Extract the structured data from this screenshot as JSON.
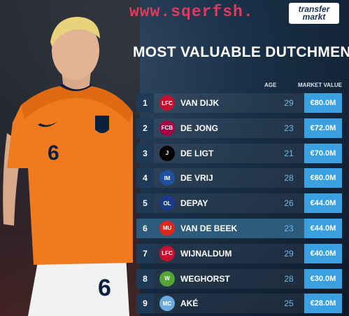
{
  "watermark": "www.sqerfsh.",
  "brand": {
    "line1": "transfer",
    "line2": "markt"
  },
  "title": "MOST VALUABLE DUTCHMEN",
  "columns": {
    "age": "AGE",
    "market_value": "MARKET VALUE"
  },
  "rows": [
    {
      "rank": "1",
      "name": "VAN DIJK",
      "age": "29",
      "value": "€80.0M",
      "club_icon": "liverpool-crest-icon",
      "crest_color": "#c8102e",
      "crest_text": "LFC"
    },
    {
      "rank": "2",
      "name": "DE JONG",
      "age": "23",
      "value": "€72.0M",
      "club_icon": "barcelona-crest-icon",
      "crest_color": "#a50044",
      "crest_text": "FCB"
    },
    {
      "rank": "3",
      "name": "DE LIGT",
      "age": "21",
      "value": "€70.0M",
      "club_icon": "juventus-crest-icon",
      "crest_color": "#000000",
      "crest_text": "J"
    },
    {
      "rank": "4",
      "name": "DE VRIJ",
      "age": "28",
      "value": "€60.0M",
      "club_icon": "inter-crest-icon",
      "crest_color": "#1e4fa0",
      "crest_text": "IM"
    },
    {
      "rank": "5",
      "name": "DEPAY",
      "age": "26",
      "value": "€44.0M",
      "club_icon": "lyon-crest-icon",
      "crest_color": "#1a3a8a",
      "crest_text": "OL"
    },
    {
      "rank": "6",
      "name": "VAN DE BEEK",
      "age": "23",
      "value": "€44.0M",
      "club_icon": "manchester-united-crest-icon",
      "crest_color": "#da291c",
      "crest_text": "MU",
      "highlight": true
    },
    {
      "rank": "7",
      "name": "WIJNALDUM",
      "age": "29",
      "value": "€40.0M",
      "club_icon": "liverpool-crest-icon",
      "crest_color": "#c8102e",
      "crest_text": "LFC"
    },
    {
      "rank": "8",
      "name": "WEGHORST",
      "age": "28",
      "value": "€30.0M",
      "club_icon": "wolfsburg-crest-icon",
      "crest_color": "#52a534",
      "crest_text": "W"
    },
    {
      "rank": "9",
      "name": "AKÉ",
      "age": "25",
      "value": "€28.0M",
      "club_icon": "manchester-city-crest-icon",
      "crest_color": "#6cabdd",
      "crest_text": "MC"
    }
  ],
  "player_shirt_number": "6"
}
